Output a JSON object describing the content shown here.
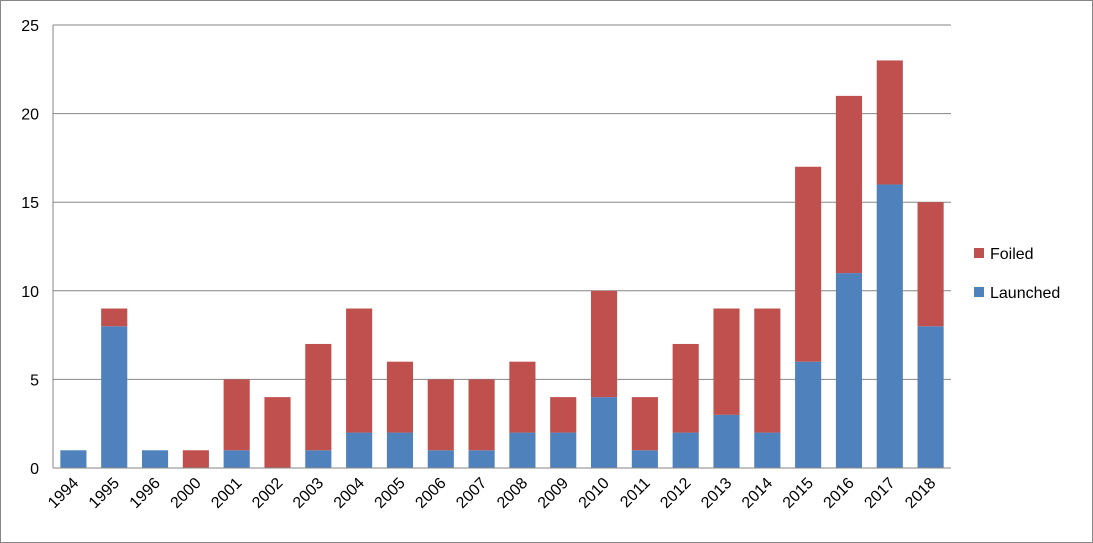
{
  "chart_data": {
    "type": "bar",
    "stacked": true,
    "title": "",
    "xlabel": "",
    "ylabel": "",
    "categories": [
      "1994",
      "1995",
      "1996",
      "2000",
      "2001",
      "2002",
      "2003",
      "2004",
      "2005",
      "2006",
      "2007",
      "2008",
      "2009",
      "2010",
      "2011",
      "2012",
      "2013",
      "2014",
      "2015",
      "2016",
      "2017",
      "2018"
    ],
    "series": [
      {
        "name": "Launched",
        "color": "#4F81BD",
        "values": [
          1,
          8,
          1,
          0,
          1,
          0,
          1,
          2,
          2,
          1,
          1,
          2,
          2,
          4,
          1,
          2,
          3,
          2,
          6,
          11,
          16,
          8
        ]
      },
      {
        "name": "Foiled",
        "color": "#C0504D",
        "values": [
          0,
          1,
          0,
          1,
          4,
          4,
          6,
          7,
          4,
          4,
          4,
          4,
          2,
          6,
          3,
          5,
          6,
          7,
          11,
          10,
          7,
          7
        ]
      }
    ],
    "ylim": [
      0,
      25
    ],
    "yticks": [
      0,
      5,
      10,
      15,
      20,
      25
    ],
    "grid": true,
    "legend": {
      "position": "right",
      "entries": [
        "Foiled",
        "Launched"
      ]
    }
  }
}
